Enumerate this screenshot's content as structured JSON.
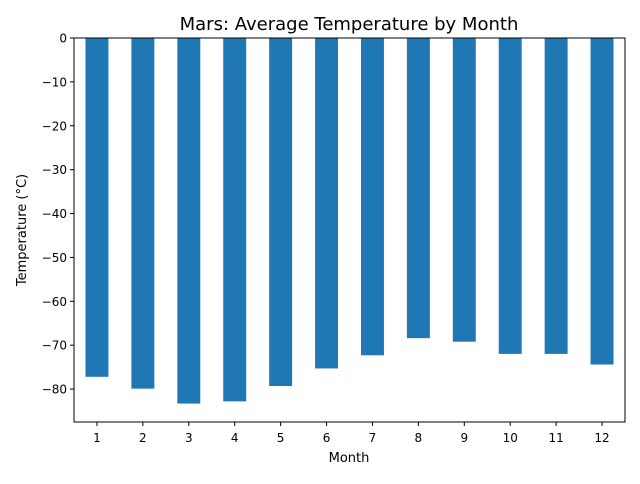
{
  "chart_data": {
    "type": "bar",
    "title": "Mars:  Average Temperature by Month",
    "xlabel": "Month",
    "ylabel": "Temperature (°C)",
    "categories": [
      "1",
      "2",
      "3",
      "4",
      "5",
      "6",
      "7",
      "8",
      "9",
      "10",
      "11",
      "12"
    ],
    "values": [
      -77.2,
      -79.9,
      -83.3,
      -82.8,
      -79.3,
      -75.3,
      -72.3,
      -68.4,
      -69.2,
      -71.98,
      -71.98,
      -74.4
    ],
    "yticks": [
      0,
      -10,
      -20,
      -30,
      -40,
      -50,
      -60,
      -70,
      -80
    ],
    "ytick_labels": [
      "0",
      "−10",
      "−20",
      "−30",
      "−40",
      "−50",
      "−60",
      "−70",
      "−80"
    ],
    "ylim": [
      -87.5,
      0
    ],
    "bar_color": "#1f77b4",
    "grid": false,
    "legend": "none"
  }
}
